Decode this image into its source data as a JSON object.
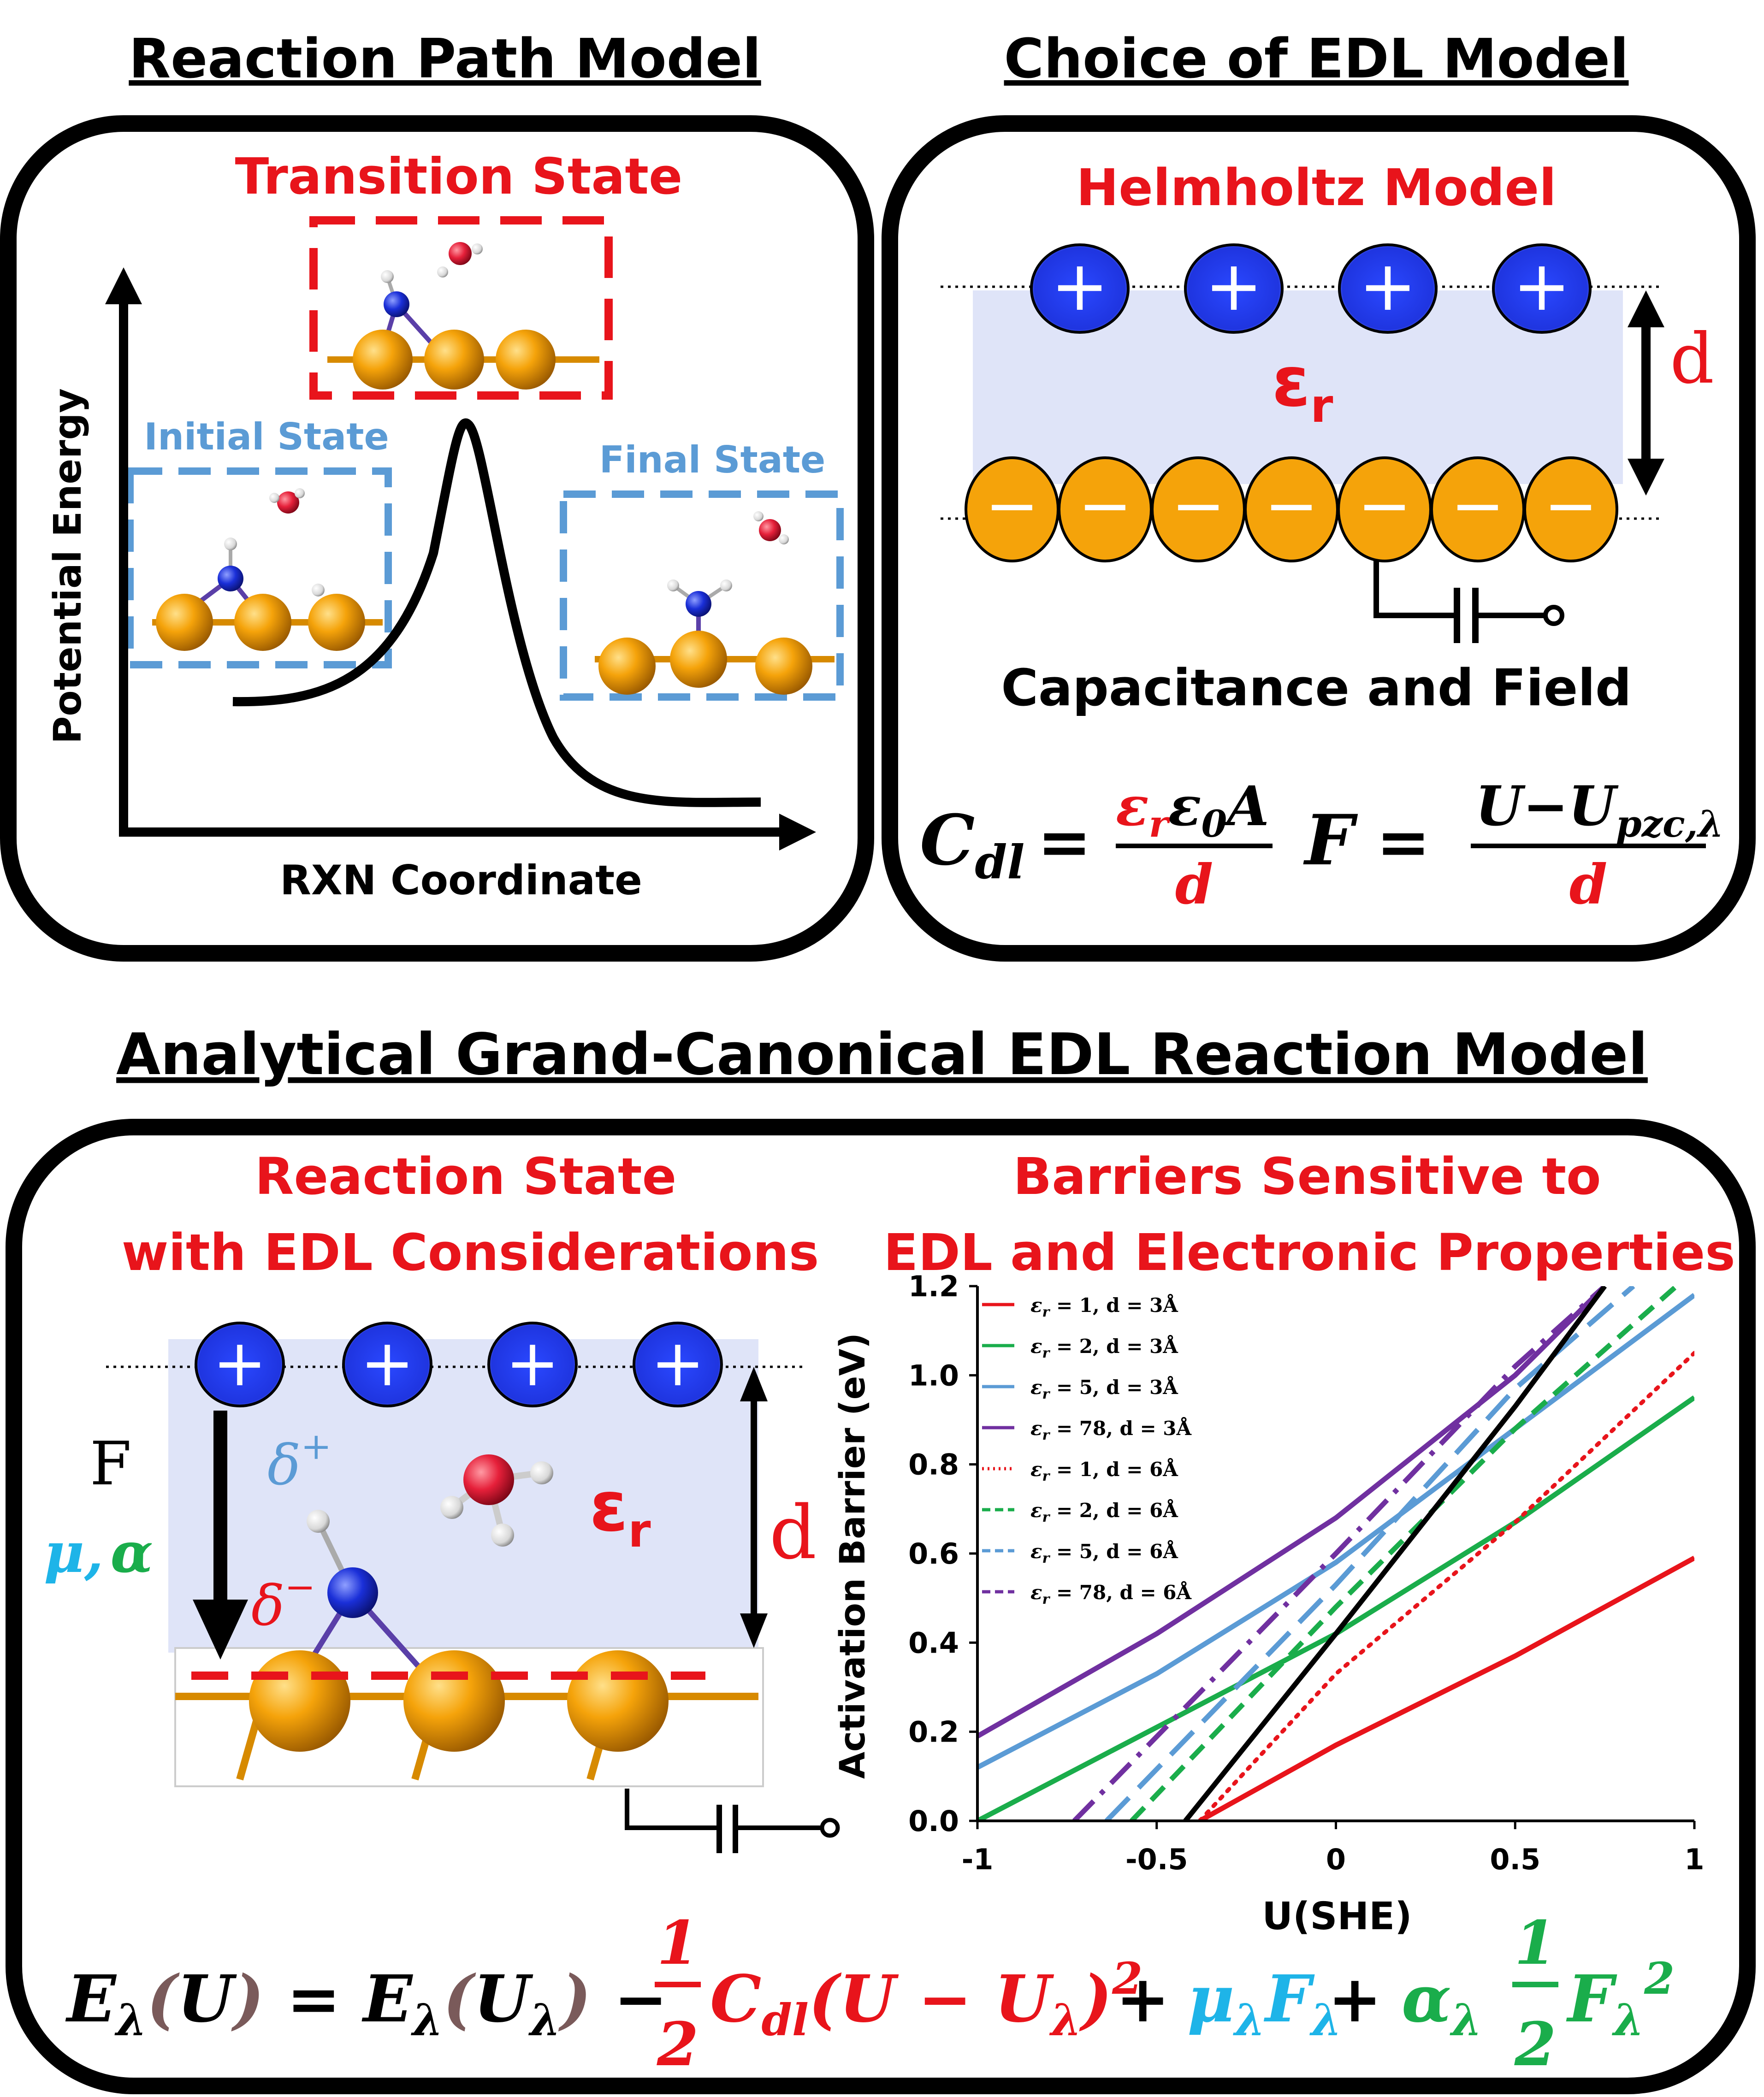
{
  "headers": {
    "reaction_path": "Reaction Path Model",
    "edl_choice": "Choice of EDL Model",
    "analytical": "Analytical Grand-Canonical EDL Reaction Model"
  },
  "reaction_path": {
    "transition_state": "Transition State",
    "initial_state": "Initial State",
    "final_state": "Final State",
    "y_axis": "Potential Energy",
    "x_axis": "RXN Coordinate"
  },
  "edl_model": {
    "title": "Helmholtz Model",
    "eps": "ε",
    "eps_sub": "r",
    "d": "d",
    "caption": "Capacitance and Field",
    "eq_cdl_lhs": "C",
    "eq_cdl_sub": "dl",
    "eq_cdl_num": "ε",
    "eq_cdl_num_sub": "r",
    "eq_cdl_num_rest": "ε",
    "eq_cdl_num_sub2": "0",
    "eq_cdl_num_A": "A",
    "eq_den": "d",
    "eq_f_lhs": "F",
    "eq_f_num": "U−U",
    "eq_f_num_sub": "pzc,λ",
    "plus": "+",
    "minus": "−",
    "equals": "="
  },
  "reaction_state": {
    "title1": "Reaction State",
    "title2": "with EDL Considerations",
    "F": "F",
    "mu_alpha_mu": "μ,",
    "mu_alpha_alpha": "α",
    "delta_plus": "δ",
    "delta_plus_sup": "+",
    "delta_minus": "δ",
    "delta_minus_sup": "−",
    "eps": "ε",
    "eps_sub": "r",
    "d": "d"
  },
  "barriers": {
    "title1": "Barriers Sensitive to",
    "title2": "EDL and Electronic Properties"
  },
  "colors": {
    "red": "#e8141b",
    "green": "#1aad4b",
    "lightblue": "#5b9bd5",
    "purple": "#7030a0",
    "black": "#000000",
    "cyan": "#1eb4e8",
    "gold": "#f5a30a",
    "blue_ion": "#1f3fd8",
    "edl_fill": "#dfe4f8"
  },
  "chart_data": {
    "type": "line",
    "xlabel": "U(SHE)",
    "ylabel": "Activation Barrier (eV)",
    "xlim": [
      -1,
      1
    ],
    "ylim": [
      0,
      1.2
    ],
    "xticks": [
      "-1",
      "-0.5",
      "0",
      "0.5",
      "1"
    ],
    "yticks": [
      "0.0",
      "0.2",
      "0.4",
      "0.6",
      "0.8",
      "1.0",
      "1.2"
    ],
    "series": [
      {
        "name": "ε_r = 1, d = 3Å",
        "lg_a": "ε",
        "lg_b": "r",
        "lg_c": " = 1, d = 3Å",
        "color": "#e8141b",
        "dash": "solid",
        "x": [
          -0.38,
          0.0,
          0.5,
          1.0
        ],
        "y": [
          0.0,
          0.17,
          0.37,
          0.59
        ]
      },
      {
        "name": "ε_r = 2, d = 3Å",
        "lg_a": "ε",
        "lg_b": "r",
        "lg_c": " = 2, d = 3Å",
        "color": "#1aad4b",
        "dash": "solid",
        "x": [
          -1.0,
          -0.5,
          0.0,
          0.5,
          1.0
        ],
        "y": [
          0.0,
          0.21,
          0.42,
          0.67,
          0.95
        ]
      },
      {
        "name": "ε_r = 5, d = 3Å",
        "lg_a": "ε",
        "lg_b": "r",
        "lg_c": " = 5, d = 3Å",
        "color": "#5b9bd5",
        "dash": "solid",
        "x": [
          -1.0,
          -0.5,
          0.0,
          0.5,
          1.0
        ],
        "y": [
          0.12,
          0.33,
          0.58,
          0.88,
          1.18
        ]
      },
      {
        "name": "ε_r = 78, d = 3Å",
        "lg_a": "ε",
        "lg_b": "r",
        "lg_c": " = 78, d = 3Å",
        "color": "#7030a0",
        "dash": "solid",
        "x": [
          -1.0,
          -0.5,
          0.0,
          0.5,
          0.75
        ],
        "y": [
          0.19,
          0.42,
          0.68,
          1.0,
          1.2
        ]
      },
      {
        "name": "ε_r = 1, d = 6Å",
        "lg_a": "ε",
        "lg_b": "r",
        "lg_c": " = 1, d = 6Å",
        "color": "#e8141b",
        "dash": "dot",
        "x": [
          -0.38,
          0.0,
          0.5,
          1.0
        ],
        "y": [
          0.0,
          0.33,
          0.67,
          1.05
        ]
      },
      {
        "name": "ε_r = 2, d = 6Å",
        "lg_a": "ε",
        "lg_b": "r",
        "lg_c": " = 2, d = 6Å",
        "color": "#1aad4b",
        "dash": "dash",
        "x": [
          -0.57,
          0.0,
          0.5,
          0.95
        ],
        "y": [
          0.0,
          0.48,
          0.88,
          1.2
        ]
      },
      {
        "name": "ε_r = 5, d = 6Å",
        "lg_a": "ε",
        "lg_b": "r",
        "lg_c": " = 5, d = 6Å",
        "color": "#5b9bd5",
        "dash": "longdash",
        "x": [
          -0.64,
          0.0,
          0.5,
          0.83
        ],
        "y": [
          0.0,
          0.53,
          0.97,
          1.2
        ]
      },
      {
        "name": "ε_r = 78, d = 6Å",
        "lg_a": "ε",
        "lg_b": "r",
        "lg_c": " = 78, d = 6Å",
        "color": "#7030a0",
        "dash": "dashdot",
        "x": [
          -0.73,
          0.0,
          0.5,
          0.75
        ],
        "y": [
          0.0,
          0.6,
          1.02,
          1.2
        ]
      },
      {
        "name": "",
        "color": "#000000",
        "dash": "solid",
        "x": [
          -0.42,
          0.0,
          0.5,
          0.75
        ],
        "y": [
          0.0,
          0.42,
          0.93,
          1.2
        ]
      }
    ]
  },
  "equation": {
    "E": "E",
    "lam": "λ",
    "U": "U",
    "paren_open": "(",
    "paren_close": ")",
    "eq": " = ",
    "minus": " − ",
    "plus": " + ",
    "half_num": "1",
    "half_den": "2",
    "C": "C",
    "C_sub": "dl",
    "U_minus": "(U − U",
    "sq": "2",
    "mu": "μ",
    "F": "F",
    "alpha": "α"
  }
}
